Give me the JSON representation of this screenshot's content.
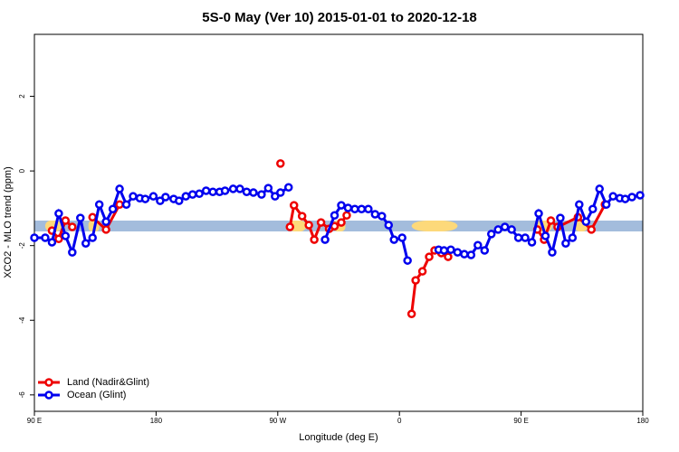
{
  "chart_data": {
    "type": "line",
    "title": "5S-0 May (Ver 10)   2015-01-01 to 2020-12-18",
    "xlabel": "Longitude (deg E)",
    "ylabel": "XCO2 - MLO trend (ppm)",
    "xlim": [
      90,
      540
    ],
    "ylim": [
      -6.44,
      3.66
    ],
    "xticks": [
      {
        "value": 90,
        "label": "90 E"
      },
      180,
      {
        "value": 270,
        "label": "90 W"
      },
      {
        "value": 360,
        "label": "0"
      },
      {
        "value": 450,
        "label": "90 E"
      },
      {
        "value": 540,
        "label": "180"
      }
    ],
    "yticks": [
      2,
      0,
      -2,
      -4,
      -6
    ],
    "legend": "bottom-left",
    "band": {
      "range": [
        -1.62,
        -1.33
      ],
      "color": "#a3bcdc",
      "land_color": "#fdd97a",
      "land": [
        [
          98,
          110
        ],
        [
          130,
          138
        ],
        [
          278,
          291
        ],
        [
          311,
          320
        ],
        [
          369,
          403
        ],
        [
          460,
          473
        ],
        [
          490,
          499
        ]
      ]
    },
    "series": [
      {
        "name": "Land (Nadir&Glint)",
        "color": "#ee0000",
        "x": [
          103,
          108,
          113,
          118,
          null,
          133,
          143,
          153,
          null,
          272,
          null,
          279,
          282,
          288,
          293,
          297,
          302,
          308,
          312,
          317,
          321,
          null,
          369,
          372,
          377,
          382,
          386,
          391,
          396,
          null,
          462,
          467,
          472,
          477,
          492,
          502,
          512
        ],
        "values": [
          -1.6,
          -1.82,
          -1.33,
          -1.5,
          null,
          -1.24,
          -1.57,
          -0.9,
          null,
          0.2,
          null,
          -1.5,
          -0.92,
          -1.21,
          -1.45,
          -1.84,
          -1.38,
          -1.55,
          -1.48,
          -1.38,
          -1.19,
          null,
          -3.83,
          -2.93,
          -2.69,
          -2.3,
          -2.13,
          -2.2,
          -2.3,
          null,
          -1.57,
          -1.84,
          -1.33,
          -1.5,
          -1.24,
          -1.57,
          -0.9
        ]
      },
      {
        "name": "Ocean (Glint)",
        "color": "#0000ee",
        "x": [
          90,
          98,
          103,
          108,
          113,
          118,
          124,
          128,
          133,
          138,
          143,
          148,
          153,
          158,
          163,
          168,
          172,
          178,
          183,
          187,
          193,
          197,
          202,
          207,
          212,
          217,
          222,
          227,
          231,
          237,
          242,
          247,
          252,
          258,
          263,
          268,
          272,
          278,
          null,
          305,
          312,
          317,
          322,
          327,
          332,
          337,
          342,
          347,
          352,
          356,
          362,
          366,
          null,
          389,
          393,
          398,
          403,
          408,
          413,
          418,
          423,
          428,
          433,
          438,
          443,
          448,
          453,
          458,
          463,
          468,
          473,
          479,
          483,
          488,
          493,
          498,
          503,
          508,
          513,
          518,
          523,
          527,
          532,
          538
        ],
        "values": [
          -1.79,
          -1.79,
          -1.91,
          -1.14,
          -1.74,
          -2.18,
          -1.26,
          -1.94,
          -1.79,
          -0.9,
          -1.36,
          -1.02,
          -0.48,
          -0.9,
          -0.68,
          -0.73,
          -0.75,
          -0.68,
          -0.8,
          -0.7,
          -0.75,
          -0.8,
          -0.68,
          -0.63,
          -0.61,
          -0.53,
          -0.56,
          -0.56,
          -0.53,
          -0.48,
          -0.48,
          -0.56,
          -0.58,
          -0.63,
          -0.46,
          -0.68,
          -0.58,
          -0.44,
          null,
          -1.84,
          -1.19,
          -0.92,
          -0.99,
          -1.02,
          -1.02,
          -1.02,
          -1.16,
          -1.21,
          -1.45,
          -1.84,
          -1.79,
          -2.4,
          null,
          -2.11,
          -2.13,
          -2.11,
          -2.18,
          -2.23,
          -2.25,
          -1.99,
          -2.13,
          -1.69,
          -1.57,
          -1.5,
          -1.57,
          -1.79,
          -1.79,
          -1.91,
          -1.14,
          -1.74,
          -2.18,
          -1.26,
          -1.94,
          -1.79,
          -0.9,
          -1.36,
          -1.02,
          -0.48,
          -0.9,
          -0.68,
          -0.73,
          -0.75,
          -0.7,
          -0.65
        ]
      }
    ]
  }
}
